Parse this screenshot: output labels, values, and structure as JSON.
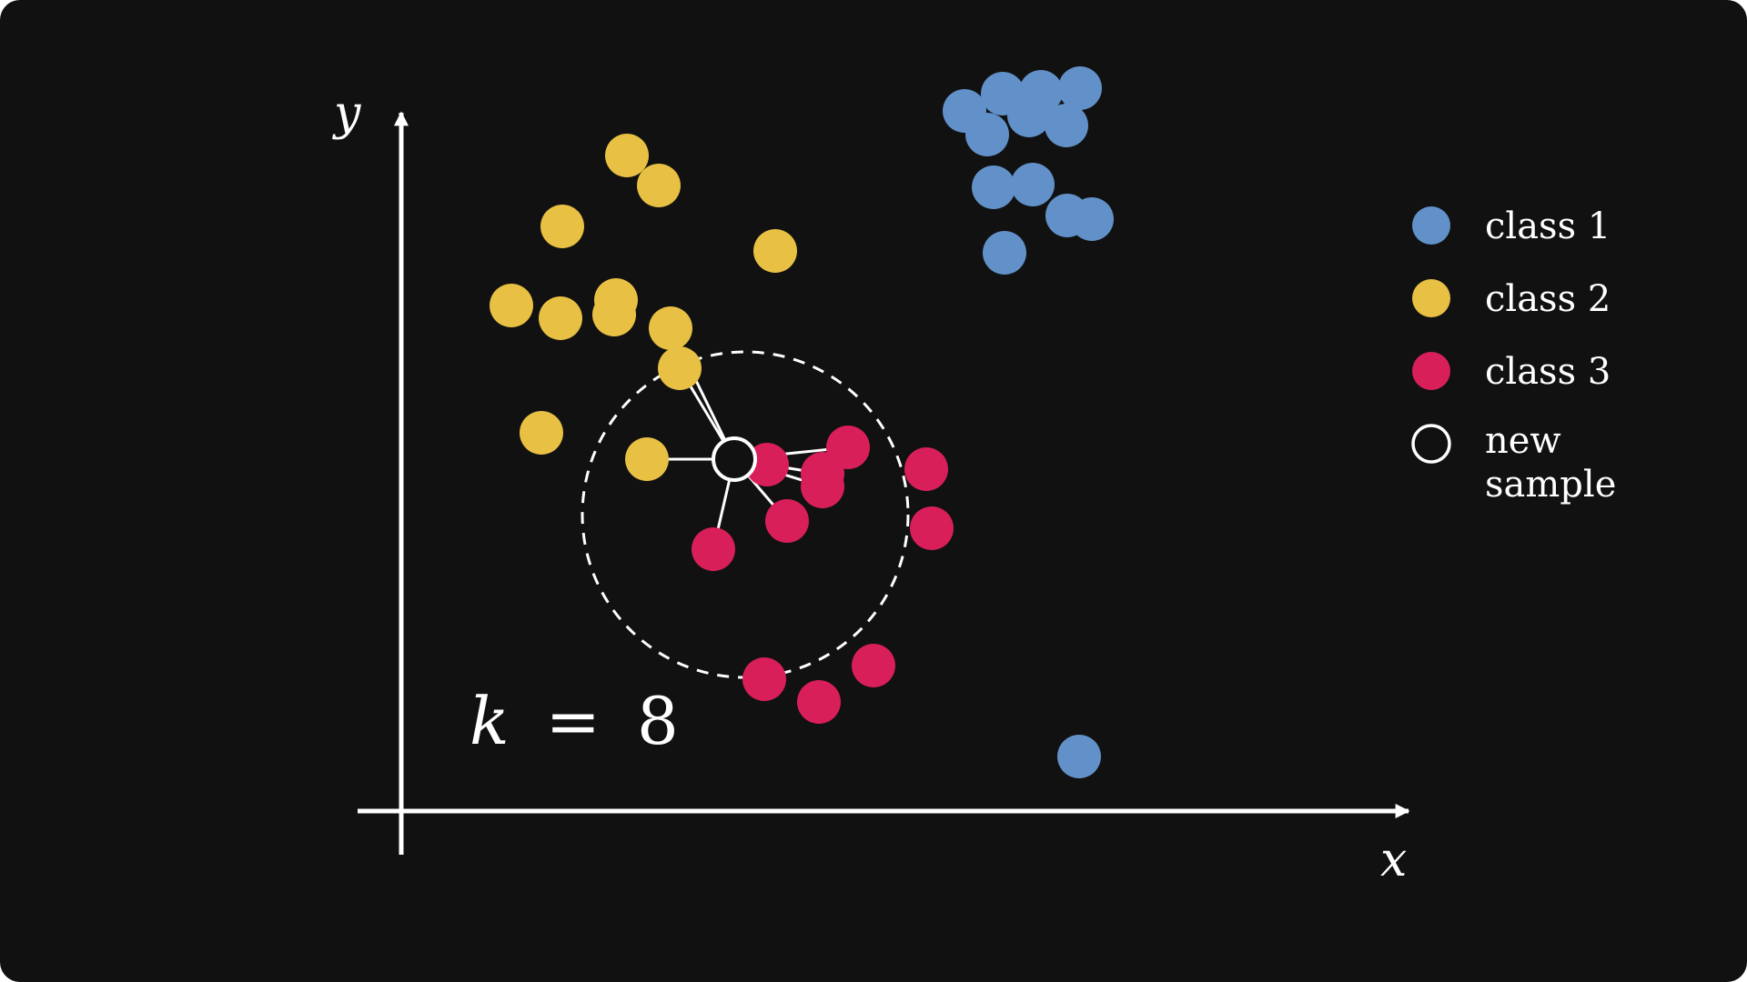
{
  "colors": {
    "background": "#111111",
    "foreground": "#ffffff",
    "class1": "#6191c8",
    "class2": "#e8c043",
    "class3": "#d81f5a"
  },
  "axes": {
    "x_label": "x",
    "y_label": "y"
  },
  "annotation": {
    "k_text": "k = 8",
    "k_symbol": "k",
    "k_equals": "=",
    "k_value": "8"
  },
  "legend": [
    {
      "label": "class 1",
      "style": "filled",
      "color": "#6191c8"
    },
    {
      "label": "class 2",
      "style": "filled",
      "color": "#e8c043"
    },
    {
      "label": "class 3",
      "style": "filled",
      "color": "#d81f5a"
    },
    {
      "label_lines": [
        "new",
        "sample"
      ],
      "style": "outline",
      "color": "#ffffff"
    }
  ],
  "points": {
    "class1": [
      [
        61.9,
        77.0
      ],
      [
        66.1,
        78.9
      ],
      [
        70.3,
        79.1
      ],
      [
        74.6,
        79.5
      ],
      [
        64.4,
        74.4
      ],
      [
        69.0,
        76.5
      ],
      [
        73.1,
        75.4
      ],
      [
        65.1,
        68.6
      ],
      [
        69.4,
        68.9
      ],
      [
        73.2,
        65.5
      ],
      [
        75.9,
        65.1
      ],
      [
        66.3,
        61.4
      ],
      [
        74.5,
        6.0
      ]
    ],
    "class2": [
      [
        24.8,
        72.1
      ],
      [
        28.3,
        68.8
      ],
      [
        17.7,
        64.3
      ],
      [
        41.1,
        61.6
      ],
      [
        23.4,
        54.6
      ],
      [
        17.5,
        54.2
      ],
      [
        12.1,
        55.6
      ],
      [
        23.6,
        56.2
      ],
      [
        15.4,
        41.6
      ],
      [
        29.6,
        53.1
      ],
      [
        30.6,
        48.7
      ],
      [
        27.0,
        38.7
      ]
    ],
    "class3": [
      [
        49.1,
        40.0
      ],
      [
        46.3,
        37.1
      ],
      [
        40.2,
        38.1
      ],
      [
        46.3,
        35.7
      ],
      [
        42.4,
        31.9
      ],
      [
        34.3,
        28.8
      ],
      [
        57.7,
        37.6
      ],
      [
        58.3,
        31.1
      ],
      [
        51.9,
        16.0
      ],
      [
        39.9,
        14.5
      ],
      [
        45.9,
        12.0
      ]
    ]
  },
  "new_sample": {
    "x": 36.6,
    "y": 38.7,
    "k": 8
  },
  "neighbors": [
    {
      "class": "class2",
      "index": 9
    },
    {
      "class": "class2",
      "index": 10
    },
    {
      "class": "class2",
      "index": 11
    },
    {
      "class": "class3",
      "index": 0
    },
    {
      "class": "class3",
      "index": 1
    },
    {
      "class": "class3",
      "index": 3
    },
    {
      "class": "class3",
      "index": 4
    },
    {
      "class": "class3",
      "index": 5
    }
  ]
}
